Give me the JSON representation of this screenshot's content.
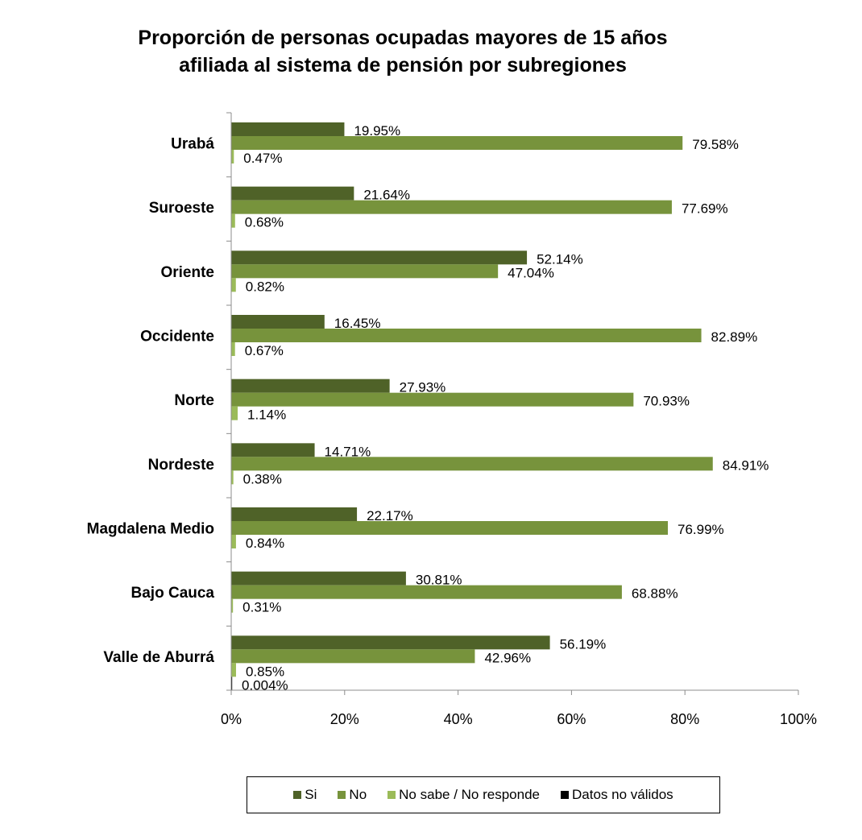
{
  "chart_data": {
    "type": "bar",
    "orientation": "horizontal",
    "title": "Proporción de personas ocupadas mayores de 15 años afiliada al sistema de pensión  por subregiones",
    "title_lines": [
      "Proporción de personas ocupadas mayores de 15 años",
      "afiliada al sistema de pensión  por subregiones"
    ],
    "categories": [
      "Urabá",
      "Suroeste",
      "Oriente",
      "Occidente",
      "Norte",
      "Nordeste",
      "Magdalena Medio",
      "Bajo Cauca",
      "Valle de Aburrá"
    ],
    "series": [
      {
        "name": "Si",
        "color": "#4f6228",
        "values": [
          19.95,
          21.64,
          52.14,
          16.45,
          27.93,
          14.71,
          22.17,
          30.81,
          56.19
        ],
        "labels": [
          "19.95%",
          "21.64%",
          "52.14%",
          "16.45%",
          "27.93%",
          "14.71%",
          "22.17%",
          "30.81%",
          "56.19%"
        ]
      },
      {
        "name": "No",
        "color": "#77933c",
        "values": [
          79.58,
          77.69,
          47.04,
          82.89,
          70.93,
          84.91,
          76.99,
          68.88,
          42.96
        ],
        "labels": [
          "79.58%",
          "77.69%",
          "47.04%",
          "82.89%",
          "70.93%",
          "84.91%",
          "76.99%",
          "68.88%",
          "42.96%"
        ]
      },
      {
        "name": "No sabe / No responde",
        "color": "#9bbb59",
        "values": [
          0.47,
          0.68,
          0.82,
          0.67,
          1.14,
          0.38,
          0.84,
          0.31,
          0.85
        ],
        "labels": [
          "0.47%",
          "0.68%",
          "0.82%",
          "0.67%",
          "1.14%",
          "0.38%",
          "0.84%",
          "0.31%",
          "0.85%"
        ]
      },
      {
        "name": "Datos no válidos",
        "color": "#000000",
        "values": [
          null,
          null,
          null,
          null,
          null,
          null,
          null,
          null,
          0.004
        ],
        "labels": [
          "",
          "",
          "",
          "",
          "",
          "",
          "",
          "",
          "0.004%"
        ]
      }
    ],
    "x_ticks": [
      "0%",
      "20%",
      "40%",
      "60%",
      "80%",
      "100%"
    ],
    "xlim": [
      0,
      100
    ],
    "xlabel": "",
    "ylabel": "",
    "grid": false,
    "legend_position": "bottom"
  }
}
